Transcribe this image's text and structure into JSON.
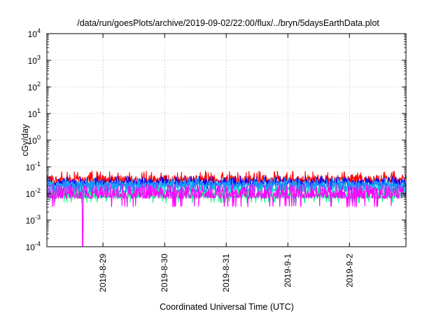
{
  "chart_data": {
    "type": "line",
    "title": "/data/run/goesPlots/archive/2019-09-02/22:00/flux/../bryn/5daysEarthData.plot",
    "xlabel": "Coordinated Universal Time (UTC)",
    "ylabel": "cGy/day",
    "y_scale": "log",
    "ylim": [
      0.0001,
      10000
    ],
    "y_ticks": [
      {
        "base": "10",
        "exp": "-4"
      },
      {
        "base": "10",
        "exp": "-3"
      },
      {
        "base": "10",
        "exp": "-2"
      },
      {
        "base": "10",
        "exp": "-1"
      },
      {
        "base": "10",
        "exp": "0"
      },
      {
        "base": "10",
        "exp": "1"
      },
      {
        "base": "10",
        "exp": "2"
      },
      {
        "base": "10",
        "exp": "3"
      },
      {
        "base": "10",
        "exp": "4"
      }
    ],
    "x_range_days": [
      "2019-8-28 ~02:00",
      "2019-9-2 22:00"
    ],
    "x_tick_labels": [
      "2019-8-29",
      "2019-8-30",
      "2019-8-31",
      "2019-9-1",
      "2019-9-2"
    ],
    "grid": true,
    "series": [
      {
        "color": "#ff0000",
        "typical_range": [
          0.018,
          0.05
        ],
        "spike_max": 0.07
      },
      {
        "color": "#0000ff",
        "typical_range": [
          0.015,
          0.035
        ],
        "spike_max": 0.045
      },
      {
        "color": "#00cfd0",
        "typical_range": [
          0.007,
          0.025
        ],
        "spike_max": 0.03
      },
      {
        "color": "#1e90ff",
        "typical_range": [
          0.012,
          0.03
        ],
        "spike_max": 0.04
      },
      {
        "color": "#00ff80",
        "typical_range": [
          0.005,
          0.012
        ],
        "spike_max": 0.015
      },
      {
        "color": "#ff00ff",
        "typical_range": [
          0.0035,
          0.02
        ],
        "spike_max": 0.022,
        "dropout_date": "2019-8-28 ~16:00",
        "dropout_min": 0.0001
      }
    ]
  }
}
